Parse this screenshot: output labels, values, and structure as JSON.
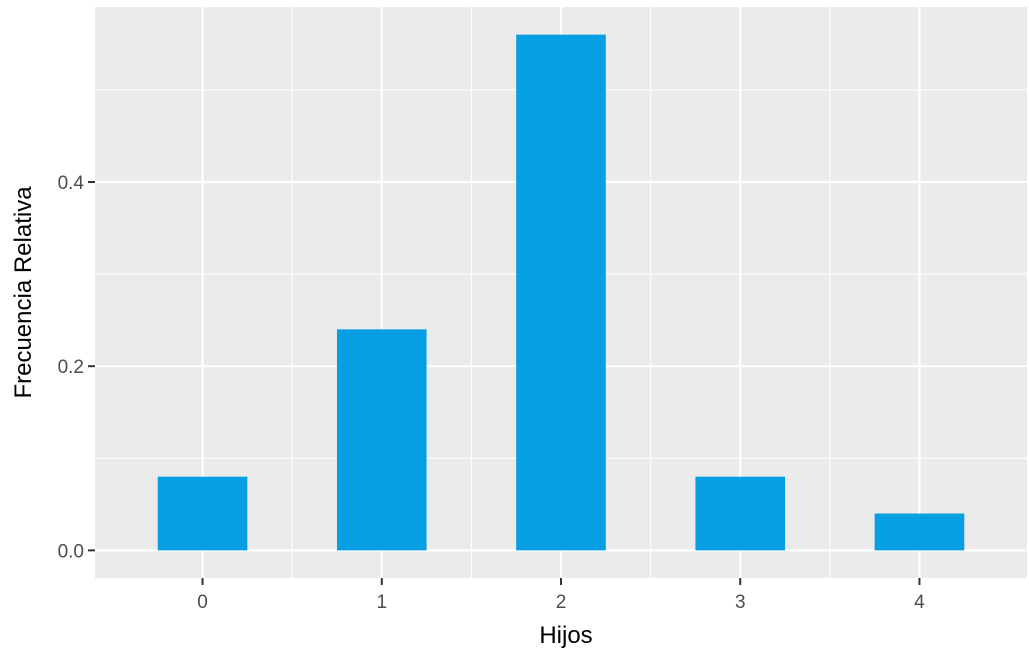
{
  "chart_data": {
    "type": "bar",
    "title": "",
    "xlabel": "Hijos",
    "ylabel": "Frecuencia Relativa",
    "categories": [
      "0",
      "1",
      "2",
      "3",
      "4"
    ],
    "values": [
      0.08,
      0.24,
      0.56,
      0.08,
      0.04
    ],
    "ylim": [
      -0.03,
      0.59
    ],
    "yticks": [
      0.0,
      0.2,
      0.4
    ],
    "ytick_labels": [
      "0.0",
      "0.2",
      "0.4"
    ],
    "grid": true,
    "legend": "none",
    "colors": {
      "bar": "#069FE3",
      "panel_background": "#EBEBEB",
      "grid": "#FFFFFF",
      "tick_label": "#4D4D4D",
      "tick_mark": "#333333",
      "axis_title": "#000000"
    }
  }
}
